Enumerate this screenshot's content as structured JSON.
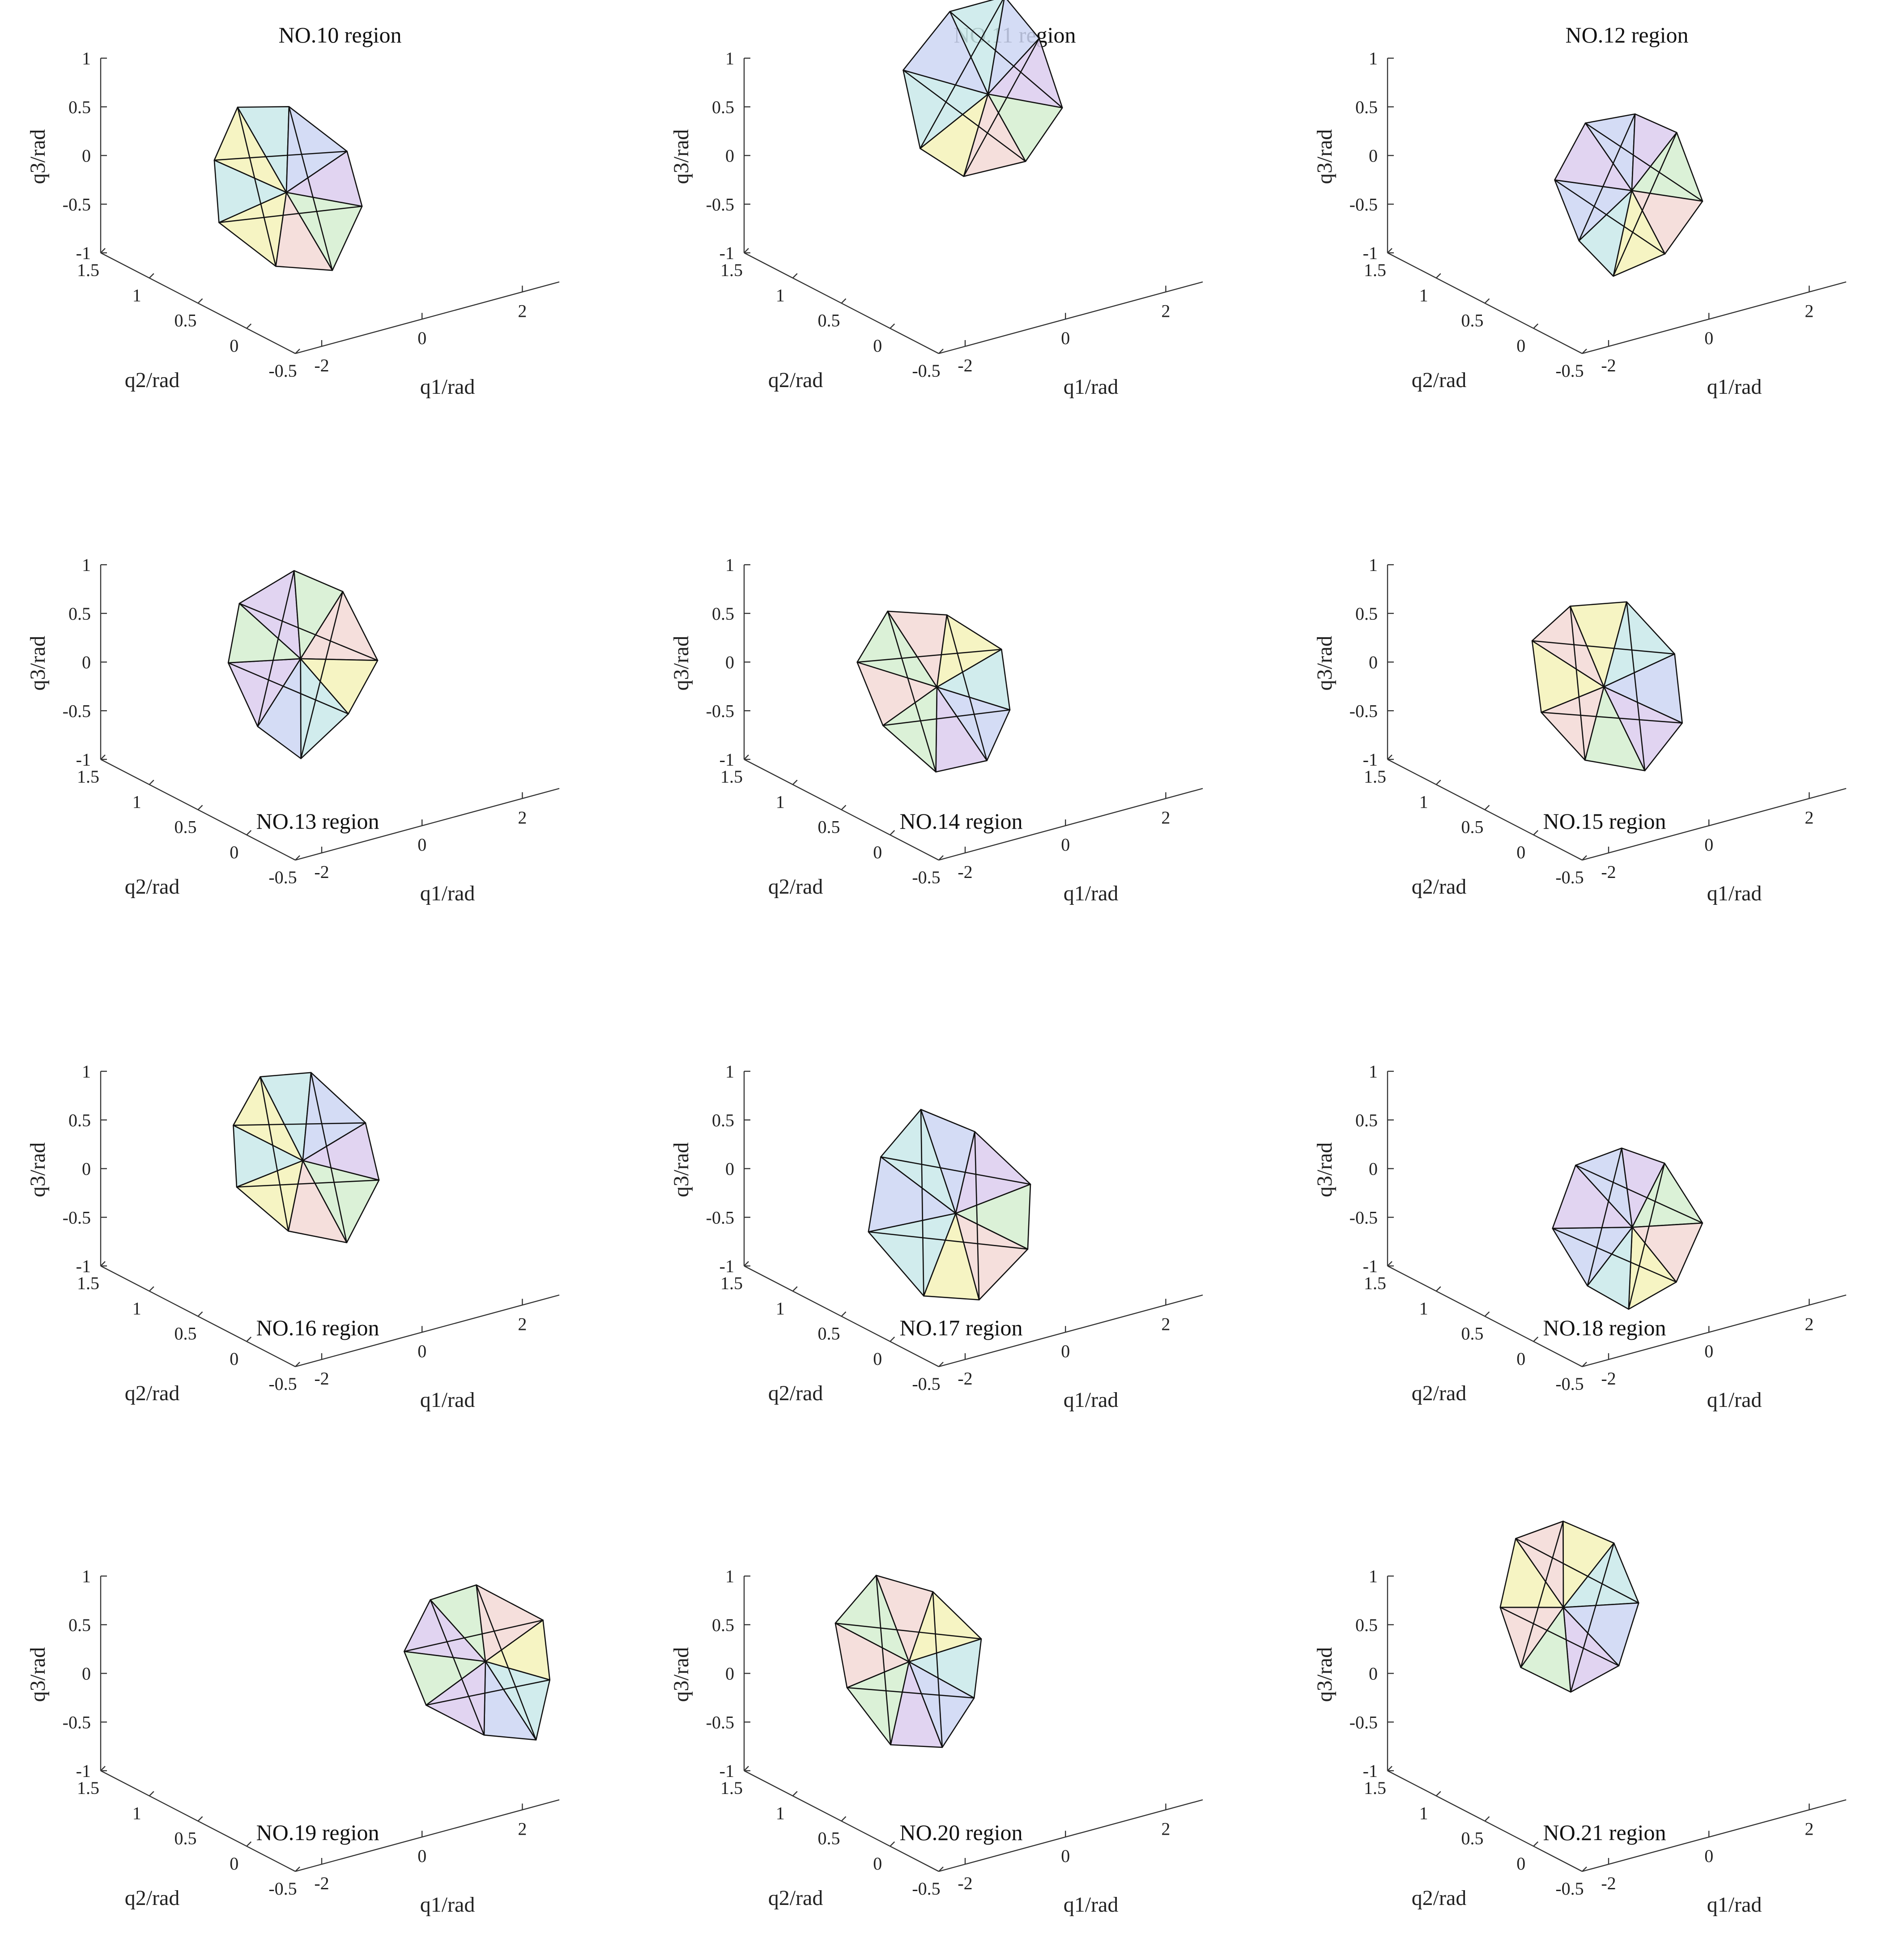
{
  "figure": {
    "chart_data": [
      {
        "type": "3d-mesh",
        "title": "NO.10 region",
        "title_position": "top",
        "xlabel": "q1/rad",
        "ylabel": "q2/rad",
        "zlabel": "q3/rad",
        "xticks": [
          "-2",
          "0",
          "2"
        ],
        "yticks": [
          "1.5",
          "1",
          "0.5",
          "0",
          "-0.5"
        ],
        "zticks": [
          "1",
          "0.5",
          "0",
          "-0.5",
          "-1"
        ],
        "xlim": [
          -3,
          3
        ],
        "ylim": [
          -0.5,
          1.5
        ],
        "zlim": [
          -1,
          1
        ]
      },
      {
        "type": "3d-mesh",
        "title": "NO.11 region",
        "title_position": "top",
        "xlabel": "q1/rad",
        "ylabel": "q2/rad",
        "zlabel": "q3/rad",
        "xticks": [
          "-2",
          "0",
          "2"
        ],
        "yticks": [
          "1.5",
          "1",
          "0.5",
          "0",
          "-0.5"
        ],
        "zticks": [
          "1",
          "0.5",
          "0",
          "-0.5",
          "-1"
        ],
        "xlim": [
          -3,
          3
        ],
        "ylim": [
          -0.5,
          1.5
        ],
        "zlim": [
          -1,
          1
        ]
      },
      {
        "type": "3d-mesh",
        "title": "NO.12 region",
        "title_position": "top",
        "xlabel": "q1/rad",
        "ylabel": "q2/rad",
        "zlabel": "q3/rad",
        "xticks": [
          "-2",
          "0",
          "2"
        ],
        "yticks": [
          "1.5",
          "1",
          "0.5",
          "0",
          "-0.5"
        ],
        "zticks": [
          "1",
          "0.5",
          "0",
          "-0.5",
          "-1"
        ],
        "xlim": [
          -3,
          3
        ],
        "ylim": [
          -0.5,
          1.5
        ],
        "zlim": [
          -1,
          1
        ]
      },
      {
        "type": "3d-mesh",
        "title": "NO.13 region",
        "title_position": "bottom",
        "xlabel": "q1/rad",
        "ylabel": "q2/rad",
        "zlabel": "q3/rad",
        "xticks": [
          "-2",
          "0",
          "2"
        ],
        "yticks": [
          "1.5",
          "1",
          "0.5",
          "0",
          "-0.5"
        ],
        "zticks": [
          "1",
          "0.5",
          "0",
          "-0.5",
          "-1"
        ],
        "xlim": [
          -3,
          3
        ],
        "ylim": [
          -0.5,
          1.5
        ],
        "zlim": [
          -1,
          1
        ]
      },
      {
        "type": "3d-mesh",
        "title": "NO.14 region",
        "title_position": "bottom",
        "xlabel": "q1/rad",
        "ylabel": "q2/rad",
        "zlabel": "q3/rad",
        "xticks": [
          "-2",
          "0",
          "2"
        ],
        "yticks": [
          "1.5",
          "1",
          "0.5",
          "0",
          "-0.5"
        ],
        "zticks": [
          "1",
          "0.5",
          "0",
          "-0.5",
          "-1"
        ],
        "xlim": [
          -3,
          3
        ],
        "ylim": [
          -0.5,
          1.5
        ],
        "zlim": [
          -1,
          1
        ]
      },
      {
        "type": "3d-mesh",
        "title": "NO.15 region",
        "title_position": "bottom",
        "xlabel": "q1/rad",
        "ylabel": "q2/rad",
        "zlabel": "q3/rad",
        "xticks": [
          "-2",
          "0",
          "2"
        ],
        "yticks": [
          "1.5",
          "1",
          "0.5",
          "0",
          "-0.5"
        ],
        "zticks": [
          "1",
          "0.5",
          "0",
          "-0.5",
          "-1"
        ],
        "xlim": [
          -3,
          3
        ],
        "ylim": [
          -0.5,
          1.5
        ],
        "zlim": [
          -1,
          1
        ]
      },
      {
        "type": "3d-mesh",
        "title": "NO.16 region",
        "title_position": "bottom",
        "xlabel": "q1/rad",
        "ylabel": "q2/rad",
        "zlabel": "q3/rad",
        "xticks": [
          "-2",
          "0",
          "2"
        ],
        "yticks": [
          "1.5",
          "1",
          "0.5",
          "0",
          "-0.5"
        ],
        "zticks": [
          "1",
          "0.5",
          "0",
          "-0.5",
          "-1"
        ],
        "xlim": [
          -3,
          3
        ],
        "ylim": [
          -0.5,
          1.5
        ],
        "zlim": [
          -1,
          1
        ]
      },
      {
        "type": "3d-mesh",
        "title": "NO.17 region",
        "title_position": "bottom",
        "xlabel": "q1/rad",
        "ylabel": "q2/rad",
        "zlabel": "q3/rad",
        "xticks": [
          "-2",
          "0",
          "2"
        ],
        "yticks": [
          "1.5",
          "1",
          "0.5",
          "0",
          "-0.5"
        ],
        "zticks": [
          "1",
          "0.5",
          "0",
          "-0.5",
          "-1"
        ],
        "xlim": [
          -3,
          3
        ],
        "ylim": [
          -0.5,
          1.5
        ],
        "zlim": [
          -1,
          1
        ]
      },
      {
        "type": "3d-mesh",
        "title": "NO.18 region",
        "title_position": "bottom",
        "xlabel": "q1/rad",
        "ylabel": "q2/rad",
        "zlabel": "q3/rad",
        "xticks": [
          "-2",
          "0",
          "2"
        ],
        "yticks": [
          "1.5",
          "1",
          "0.5",
          "0",
          "-0.5"
        ],
        "zticks": [
          "1",
          "0.5",
          "0",
          "-0.5",
          "-1"
        ],
        "xlim": [
          -3,
          3
        ],
        "ylim": [
          -0.5,
          1.5
        ],
        "zlim": [
          -1,
          1
        ]
      },
      {
        "type": "3d-mesh",
        "title": "NO.19 region",
        "title_position": "bottom",
        "xlabel": "q1/rad",
        "ylabel": "q2/rad",
        "zlabel": "q3/rad",
        "xticks": [
          "-2",
          "0",
          "2"
        ],
        "yticks": [
          "1.5",
          "1",
          "0.5",
          "0",
          "-0.5"
        ],
        "zticks": [
          "1",
          "0.5",
          "0",
          "-0.5",
          "-1"
        ],
        "xlim": [
          -3,
          3
        ],
        "ylim": [
          -0.5,
          1.5
        ],
        "zlim": [
          -1,
          1
        ]
      },
      {
        "type": "3d-mesh",
        "title": "NO.20 region",
        "title_position": "bottom",
        "xlabel": "q1/rad",
        "ylabel": "q2/rad",
        "zlabel": "q3/rad",
        "xticks": [
          "-2",
          "0",
          "2"
        ],
        "yticks": [
          "1.5",
          "1",
          "0.5",
          "0",
          "-0.5"
        ],
        "zticks": [
          "1",
          "0.5",
          "0",
          "-0.5",
          "-1"
        ],
        "xlim": [
          -3,
          3
        ],
        "ylim": [
          -0.5,
          1.5
        ],
        "zlim": [
          -1,
          1
        ]
      },
      {
        "type": "3d-mesh",
        "title": "NO.21 region",
        "title_position": "bottom",
        "xlabel": "q1/rad",
        "ylabel": "q2/rad",
        "zlabel": "q3/rad",
        "xticks": [
          "-2",
          "0",
          "2"
        ],
        "yticks": [
          "1.5",
          "1",
          "0.5",
          "0",
          "-0.5"
        ],
        "zticks": [
          "1",
          "0.5",
          "0",
          "-0.5",
          "-1"
        ],
        "xlim": [
          -3,
          3
        ],
        "ylim": [
          -0.5,
          1.5
        ],
        "zlim": [
          -1,
          1
        ]
      }
    ],
    "face_colors": [
      "#f4f2b8",
      "#c9e9ea",
      "#cdd6f3",
      "#dccdef",
      "#d5efd0",
      "#f3d9d6"
    ],
    "edge_color": "#111111",
    "axis_color": "#333333"
  }
}
